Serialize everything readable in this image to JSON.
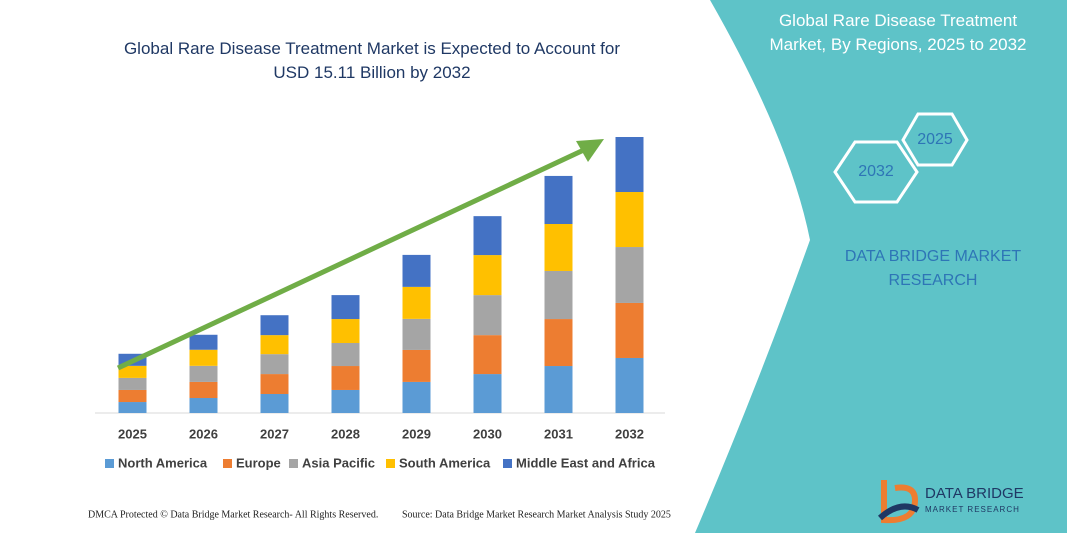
{
  "chart_data": {
    "type": "stacked_bar",
    "title": "Global Rare Disease Treatment Market is Expected to Account for USD 15.11 Billion by 2032",
    "categories": [
      "2025",
      "2026",
      "2027",
      "2028",
      "2029",
      "2030",
      "2031",
      "2032"
    ],
    "series": [
      {
        "name": "North America",
        "color": "#5b9bd5",
        "values": [
          0.6,
          0.82,
          1.04,
          1.26,
          1.7,
          2.13,
          2.57,
          3.01
        ]
      },
      {
        "name": "Europe",
        "color": "#ed7d31",
        "values": [
          0.66,
          0.88,
          1.09,
          1.31,
          1.75,
          2.13,
          2.57,
          3.01
        ]
      },
      {
        "name": "Asia Pacific",
        "color": "#a5a5a5",
        "values": [
          0.66,
          0.88,
          1.09,
          1.26,
          1.7,
          2.19,
          2.63,
          3.06
        ]
      },
      {
        "name": "South America",
        "color": "#ffc000",
        "values": [
          0.66,
          0.88,
          1.04,
          1.31,
          1.75,
          2.19,
          2.57,
          3.01
        ]
      },
      {
        "name": "Middle East and Africa",
        "color": "#4472c4",
        "values": [
          0.66,
          0.82,
          1.09,
          1.31,
          1.75,
          2.13,
          2.63,
          3.01
        ]
      }
    ]
  },
  "panel": {
    "title": "Global Rare Disease Treatment Market, By Regions, 2025 to 2032",
    "hex_top": "2025",
    "hex_bottom": "2032",
    "brand": "DATA BRIDGE MARKET RESEARCH"
  },
  "logo": {
    "name": "DATA BRIDGE",
    "tagline": "MARKET RESEARCH"
  },
  "footer": {
    "left": "DMCA Protected © Data Bridge Market Research- All Rights Reserved.",
    "right": "Source: Data Bridge Market Research Market Analysis Study 2025"
  }
}
